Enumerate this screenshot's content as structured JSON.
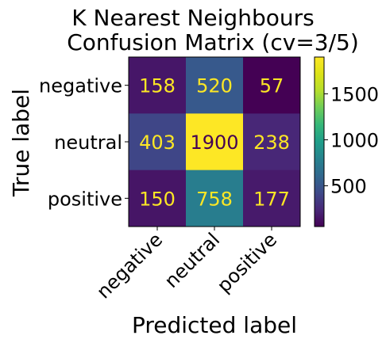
{
  "chart_data": {
    "type": "heatmap",
    "title_line1": "K Nearest Neighbours",
    "title_line2": "Confusion Matrix (cv=3/5)",
    "xlabel": "Predicted label",
    "ylabel": "True label",
    "x_categories": [
      "negative",
      "neutral",
      "positive"
    ],
    "y_categories": [
      "negative",
      "neutral",
      "positive"
    ],
    "matrix": [
      [
        158,
        520,
        57
      ],
      [
        403,
        1900,
        238
      ],
      [
        150,
        758,
        177
      ]
    ],
    "colormap": "viridis",
    "colorbar": {
      "min": 57,
      "max": 1900,
      "ticks": [
        500,
        1000,
        1500
      ],
      "tick_labels": [
        "500",
        "1000",
        "1500"
      ]
    },
    "text_color_low": "#fde725",
    "text_color_high": "#440154"
  }
}
